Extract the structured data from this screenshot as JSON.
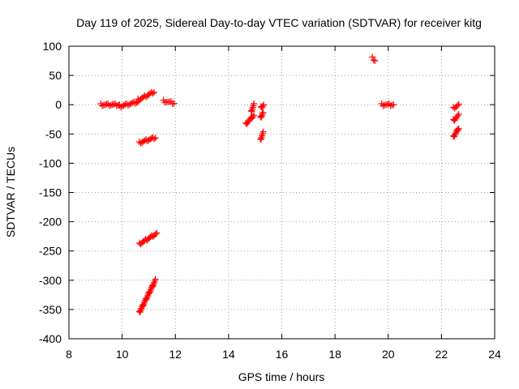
{
  "chart_data": {
    "type": "scatter",
    "title": "Day 119 of 2025, Sidereal Day-to-day VTEC variation (SDTVAR) for receiver kitg",
    "xlabel": "GPS time / hours",
    "ylabel": "SDTVAR / TECUs",
    "xlim": [
      8,
      24
    ],
    "ylim": [
      -400,
      100
    ],
    "xticks": [
      8,
      10,
      12,
      14,
      16,
      18,
      20,
      22,
      24
    ],
    "yticks": [
      100,
      50,
      0,
      -50,
      -100,
      -150,
      -200,
      -250,
      -300,
      -350,
      -400
    ],
    "grid": true,
    "marker": "+",
    "color": "#ff0000",
    "segments": [
      {
        "x": [
          9.2,
          9.9
        ],
        "y": [
          0,
          0
        ]
      },
      {
        "x": [
          9.9,
          10.6
        ],
        "y": [
          -3,
          5
        ]
      },
      {
        "x": [
          10.6,
          11.2
        ],
        "y": [
          8,
          22
        ]
      },
      {
        "x": [
          11.55,
          11.95
        ],
        "y": [
          6,
          3
        ]
      },
      {
        "x": [
          10.65,
          11.25
        ],
        "y": [
          -65,
          -56
        ]
      },
      {
        "x": [
          10.65,
          11.3
        ],
        "y": [
          -238,
          -220
        ]
      },
      {
        "x": [
          10.65,
          11.25
        ],
        "y": [
          -355,
          -300
        ]
      },
      {
        "x": [
          14.65,
          14.95
        ],
        "y": [
          -33,
          -18
        ]
      },
      {
        "x": [
          14.85,
          14.95
        ],
        "y": [
          -12,
          0
        ]
      },
      {
        "x": [
          15.2,
          15.3
        ],
        "y": [
          -22,
          -14
        ]
      },
      {
        "x": [
          15.22,
          15.32
        ],
        "y": [
          -5,
          0
        ]
      },
      {
        "x": [
          15.2,
          15.3
        ],
        "y": [
          -60,
          -48
        ]
      },
      {
        "x": [
          19.4,
          19.5
        ],
        "y": [
          80,
          76
        ]
      },
      {
        "x": [
          19.75,
          20.2
        ],
        "y": [
          0,
          0
        ]
      },
      {
        "x": [
          22.45,
          22.65
        ],
        "y": [
          -6,
          0
        ]
      },
      {
        "x": [
          22.45,
          22.65
        ],
        "y": [
          -27,
          -18
        ]
      },
      {
        "x": [
          22.45,
          22.65
        ],
        "y": [
          -55,
          -40
        ]
      }
    ]
  }
}
